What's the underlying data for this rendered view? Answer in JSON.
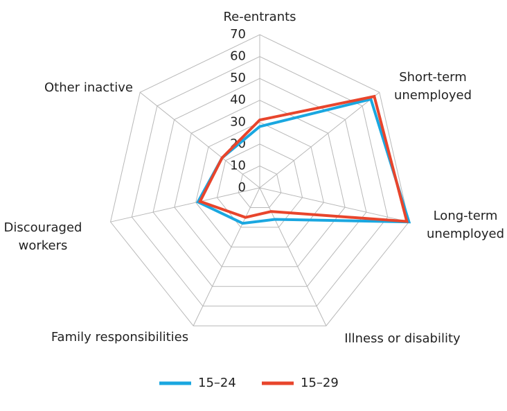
{
  "chart_data": {
    "type": "radar",
    "categories": [
      "Re-entrants",
      "Short-term unemployed",
      "Long-term unemployed",
      "Illness or disability",
      "Family responsibilities",
      "Discouraged workers",
      "Other inactive"
    ],
    "series": [
      {
        "name": "15–24",
        "color": "#1aa7e0",
        "values": [
          28,
          65,
          70,
          16,
          18,
          29,
          22
        ]
      },
      {
        "name": "15–29",
        "color": "#e8452c",
        "values": [
          31,
          67,
          69,
          12,
          15,
          28,
          22
        ]
      }
    ],
    "ylim": [
      0,
      70
    ],
    "yticks": [
      0,
      10,
      20,
      30,
      40,
      50,
      60,
      70
    ],
    "grid": true,
    "legend": "bottom"
  }
}
